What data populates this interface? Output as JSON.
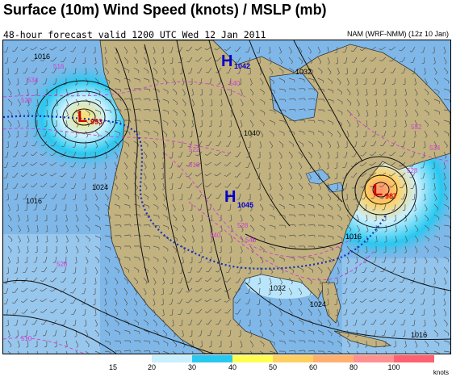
{
  "title": "Surface (10m) Wind Speed (knots) / MSLP (mb)",
  "subtitle": "48-hour forecast valid 1200 UTC Wed 12 Jan 2011",
  "model_label": "NAM (WRF-NMM) (12z 10 Jan)",
  "pressure_centers": [
    {
      "type": "L",
      "value": "993",
      "color": "#d00000"
    },
    {
      "type": "H",
      "value": "1042",
      "color": "#0000cc"
    },
    {
      "type": "H",
      "value": "1045",
      "color": "#0000cc"
    },
    {
      "type": "L",
      "value": "987",
      "color": "#d00000"
    }
  ],
  "isobar_labels": [
    "1016",
    "1024",
    "1032",
    "1040",
    "1016",
    "1024",
    "1032",
    "1016",
    "1016"
  ],
  "thickness_labels": [
    "516",
    "528",
    "534",
    "540",
    "522",
    "528",
    "546",
    "540",
    "552",
    "534",
    "528",
    "516",
    "510",
    "528"
  ],
  "legend": {
    "ticks": [
      "15",
      "20",
      "30",
      "40",
      "50",
      "60",
      "80",
      "100"
    ],
    "unit": "knots",
    "colors": [
      "#c8f0ff",
      "#28c8f0",
      "#ffff50",
      "#ffd060",
      "#ffb070",
      "#ff9090",
      "#ff6070"
    ]
  },
  "colors": {
    "land": "#c2b280",
    "ocean": "#7fb8e8",
    "isobar": "#111111",
    "thickness": "#d040d0",
    "freezing_line": "#1030c0",
    "high": "#0000cc",
    "low": "#d00000"
  }
}
